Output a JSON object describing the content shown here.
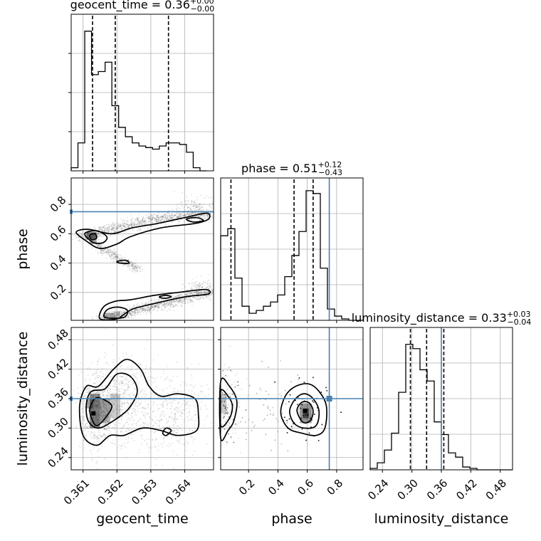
{
  "chart_data": {
    "type": "corner",
    "parameters": [
      {
        "name": "geocent_time",
        "xlabel": "geocent_time",
        "range": [
          0.36065,
          0.36485
        ],
        "ticks": [
          0.361,
          0.362,
          0.363,
          0.364
        ],
        "tick_labels": [
          "0.361",
          "0.362",
          "0.363",
          "0.364"
        ],
        "title": {
          "main": "geocent_time = 0.36",
          "plus": "+0.00",
          "minus": "−0.00"
        },
        "quantiles": [
          0.36128,
          0.36195,
          0.36352
        ],
        "truth": null
      },
      {
        "name": "phase",
        "xlabel": "phase",
        "ylabel": "phase",
        "range": [
          0.01,
          0.98
        ],
        "ticks": [
          0.2,
          0.4,
          0.6,
          0.8
        ],
        "tick_labels": [
          "0.2",
          "0.4",
          "0.6",
          "0.8"
        ],
        "title": {
          "main": "phase = 0.51",
          "plus": "+0.12",
          "minus": "−0.43"
        },
        "quantiles": [
          0.08,
          0.51,
          0.64
        ],
        "truth": 0.75
      },
      {
        "name": "luminosity_distance",
        "xlabel": "luminosity_distance",
        "ylabel": "luminosity_distance",
        "range": [
          0.215,
          0.505
        ],
        "ticks": [
          0.24,
          0.3,
          0.36,
          0.42,
          0.48
        ],
        "tick_labels": [
          "0.24",
          "0.30",
          "0.36",
          "0.42",
          "0.48"
        ],
        "title": {
          "main": "luminosity_distance = 0.33",
          "plus": "+0.03",
          "minus": "−0.04"
        },
        "quantiles": [
          0.297,
          0.33,
          0.365
        ],
        "truth": 0.36
      }
    ],
    "histograms": {
      "geocent_time": {
        "bin_start": 0.36065,
        "bin_width": 0.0002,
        "counts": [
          0.02,
          0.18,
          0.9,
          0.62,
          0.64,
          0.7,
          0.42,
          0.28,
          0.22,
          0.18,
          0.16,
          0.15,
          0.14,
          0.16,
          0.18,
          0.18,
          0.17,
          0.12,
          0.02,
          0.0
        ]
      },
      "phase": {
        "bin_start": 0.01,
        "bin_width": 0.0485,
        "counts": [
          0.6,
          0.65,
          0.3,
          0.1,
          0.05,
          0.07,
          0.1,
          0.13,
          0.18,
          0.31,
          0.46,
          0.63,
          0.92,
          0.9,
          0.37,
          0.08,
          0.03,
          0.01,
          0.0,
          0.0
        ]
      },
      "luminosity_distance": {
        "bin_start": 0.215,
        "bin_width": 0.0145,
        "counts": [
          0.01,
          0.05,
          0.14,
          0.26,
          0.55,
          0.89,
          0.86,
          0.71,
          0.63,
          0.34,
          0.25,
          0.12,
          0.09,
          0.02,
          0.01,
          0.0,
          0.0,
          0.0,
          0.0,
          0.0
        ]
      }
    },
    "contours": {
      "phase_vs_geocent_time": [
        {
          "level": "outer",
          "points": [
            [
              0.3608,
              0.61
            ],
            [
              0.36115,
              0.63
            ],
            [
              0.36185,
              0.6
            ],
            [
              0.36245,
              0.64
            ],
            [
              0.3632,
              0.67
            ],
            [
              0.364,
              0.71
            ],
            [
              0.36465,
              0.74
            ],
            [
              0.3647,
              0.7
            ],
            [
              0.3643,
              0.67
            ],
            [
              0.3633,
              0.64
            ],
            [
              0.3624,
              0.58
            ],
            [
              0.362,
              0.53
            ],
            [
              0.3615,
              0.5
            ],
            [
              0.3611,
              0.55
            ]
          ]
        },
        {
          "level": "middle",
          "points": [
            [
              0.36105,
              0.6
            ],
            [
              0.3614,
              0.62
            ],
            [
              0.3617,
              0.58
            ],
            [
              0.3616,
              0.54
            ],
            [
              0.3613,
              0.54
            ]
          ]
        },
        {
          "level": "inner",
          "points": [
            [
              0.3612,
              0.59
            ],
            [
              0.36135,
              0.6
            ],
            [
              0.3614,
              0.57
            ],
            [
              0.36125,
              0.56
            ]
          ]
        },
        {
          "level": "outer",
          "points": [
            [
              0.36405,
              0.7
            ],
            [
              0.36435,
              0.71
            ],
            [
              0.36455,
              0.69
            ],
            [
              0.36425,
              0.68
            ]
          ]
        },
        {
          "level": "outer",
          "points": [
            [
              0.362,
              0.41
            ],
            [
              0.36225,
              0.42
            ],
            [
              0.36235,
              0.4
            ],
            [
              0.3621,
              0.4
            ]
          ]
        },
        {
          "level": "outer",
          "points": [
            [
              0.3615,
              0.02
            ],
            [
              0.3616,
              0.1
            ],
            [
              0.36195,
              0.14
            ],
            [
              0.3624,
              0.15
            ],
            [
              0.3631,
              0.18
            ],
            [
              0.3638,
              0.2
            ],
            [
              0.3646,
              0.22
            ],
            [
              0.3647,
              0.19
            ],
            [
              0.364,
              0.17
            ],
            [
              0.3632,
              0.13
            ],
            [
              0.3625,
              0.09
            ],
            [
              0.3622,
              0.05
            ],
            [
              0.362,
              0.02
            ]
          ]
        },
        {
          "level": "middle",
          "points": [
            [
              0.36165,
              0.03
            ],
            [
              0.3617,
              0.08
            ],
            [
              0.362,
              0.1
            ],
            [
              0.3623,
              0.08
            ],
            [
              0.3622,
              0.03
            ]
          ]
        },
        {
          "level": "outer",
          "points": [
            [
              0.36325,
              0.17
            ],
            [
              0.36345,
              0.18
            ],
            [
              0.3636,
              0.17
            ],
            [
              0.3634,
              0.16
            ]
          ]
        }
      ],
      "luminosity_distance_vs_geocent_time": [
        {
          "level": "outer",
          "points": [
            [
              0.3609,
              0.345
            ],
            [
              0.3611,
              0.385
            ],
            [
              0.36145,
              0.385
            ],
            [
              0.3619,
              0.42
            ],
            [
              0.3623,
              0.44
            ],
            [
              0.3627,
              0.42
            ],
            [
              0.36295,
              0.385
            ],
            [
              0.3633,
              0.365
            ],
            [
              0.3638,
              0.37
            ],
            [
              0.3643,
              0.36
            ],
            [
              0.3644,
              0.33
            ],
            [
              0.36435,
              0.295
            ],
            [
              0.3638,
              0.285
            ],
            [
              0.3633,
              0.295
            ],
            [
              0.36275,
              0.3
            ],
            [
              0.3622,
              0.285
            ],
            [
              0.3618,
              0.285
            ],
            [
              0.3614,
              0.265
            ],
            [
              0.361,
              0.285
            ]
          ]
        },
        {
          "level": "middle",
          "points": [
            [
              0.3611,
              0.35
            ],
            [
              0.36125,
              0.375
            ],
            [
              0.36165,
              0.38
            ],
            [
              0.362,
              0.41
            ],
            [
              0.3624,
              0.405
            ],
            [
              0.3626,
              0.375
            ],
            [
              0.36235,
              0.34
            ],
            [
              0.3619,
              0.315
            ],
            [
              0.36145,
              0.3
            ],
            [
              0.36115,
              0.315
            ]
          ]
        },
        {
          "level": "inner",
          "points": [
            [
              0.3612,
              0.34
            ],
            [
              0.36135,
              0.36
            ],
            [
              0.36155,
              0.36
            ],
            [
              0.36185,
              0.345
            ],
            [
              0.36165,
              0.32
            ],
            [
              0.3614,
              0.305
            ],
            [
              0.36125,
              0.32
            ]
          ]
        },
        {
          "level": "outer",
          "points": [
            [
              0.36335,
              0.29
            ],
            [
              0.36345,
              0.3
            ],
            [
              0.3636,
              0.295
            ],
            [
              0.36345,
              0.285
            ]
          ]
        }
      ],
      "luminosity_distance_vs_phase": [
        {
          "level": "outer",
          "points": [
            [
              0.01,
              0.395
            ],
            [
              0.07,
              0.385
            ],
            [
              0.12,
              0.355
            ],
            [
              0.1,
              0.315
            ],
            [
              0.06,
              0.295
            ],
            [
              0.01,
              0.28
            ]
          ]
        },
        {
          "level": "middle",
          "points": [
            [
              0.01,
              0.375
            ],
            [
              0.06,
              0.365
            ],
            [
              0.09,
              0.345
            ],
            [
              0.07,
              0.32
            ],
            [
              0.01,
              0.305
            ]
          ]
        },
        {
          "level": "outer",
          "points": [
            [
              0.42,
              0.33
            ],
            [
              0.45,
              0.365
            ],
            [
              0.52,
              0.385
            ],
            [
              0.61,
              0.39
            ],
            [
              0.68,
              0.375
            ],
            [
              0.73,
              0.345
            ],
            [
              0.72,
              0.3
            ],
            [
              0.66,
              0.285
            ],
            [
              0.56,
              0.29
            ],
            [
              0.47,
              0.3
            ]
          ]
        },
        {
          "level": "middle",
          "points": [
            [
              0.48,
              0.335
            ],
            [
              0.52,
              0.36
            ],
            [
              0.58,
              0.37
            ],
            [
              0.64,
              0.36
            ],
            [
              0.68,
              0.335
            ],
            [
              0.66,
              0.305
            ],
            [
              0.58,
              0.3
            ],
            [
              0.51,
              0.31
            ]
          ]
        },
        {
          "level": "inner",
          "points": [
            [
              0.53,
              0.335
            ],
            [
              0.56,
              0.352
            ],
            [
              0.61,
              0.352
            ],
            [
              0.64,
              0.335
            ],
            [
              0.62,
              0.315
            ],
            [
              0.57,
              0.312
            ]
          ]
        }
      ]
    },
    "truth_color": "#4682b4",
    "line_color": "#000000",
    "grid": true
  }
}
